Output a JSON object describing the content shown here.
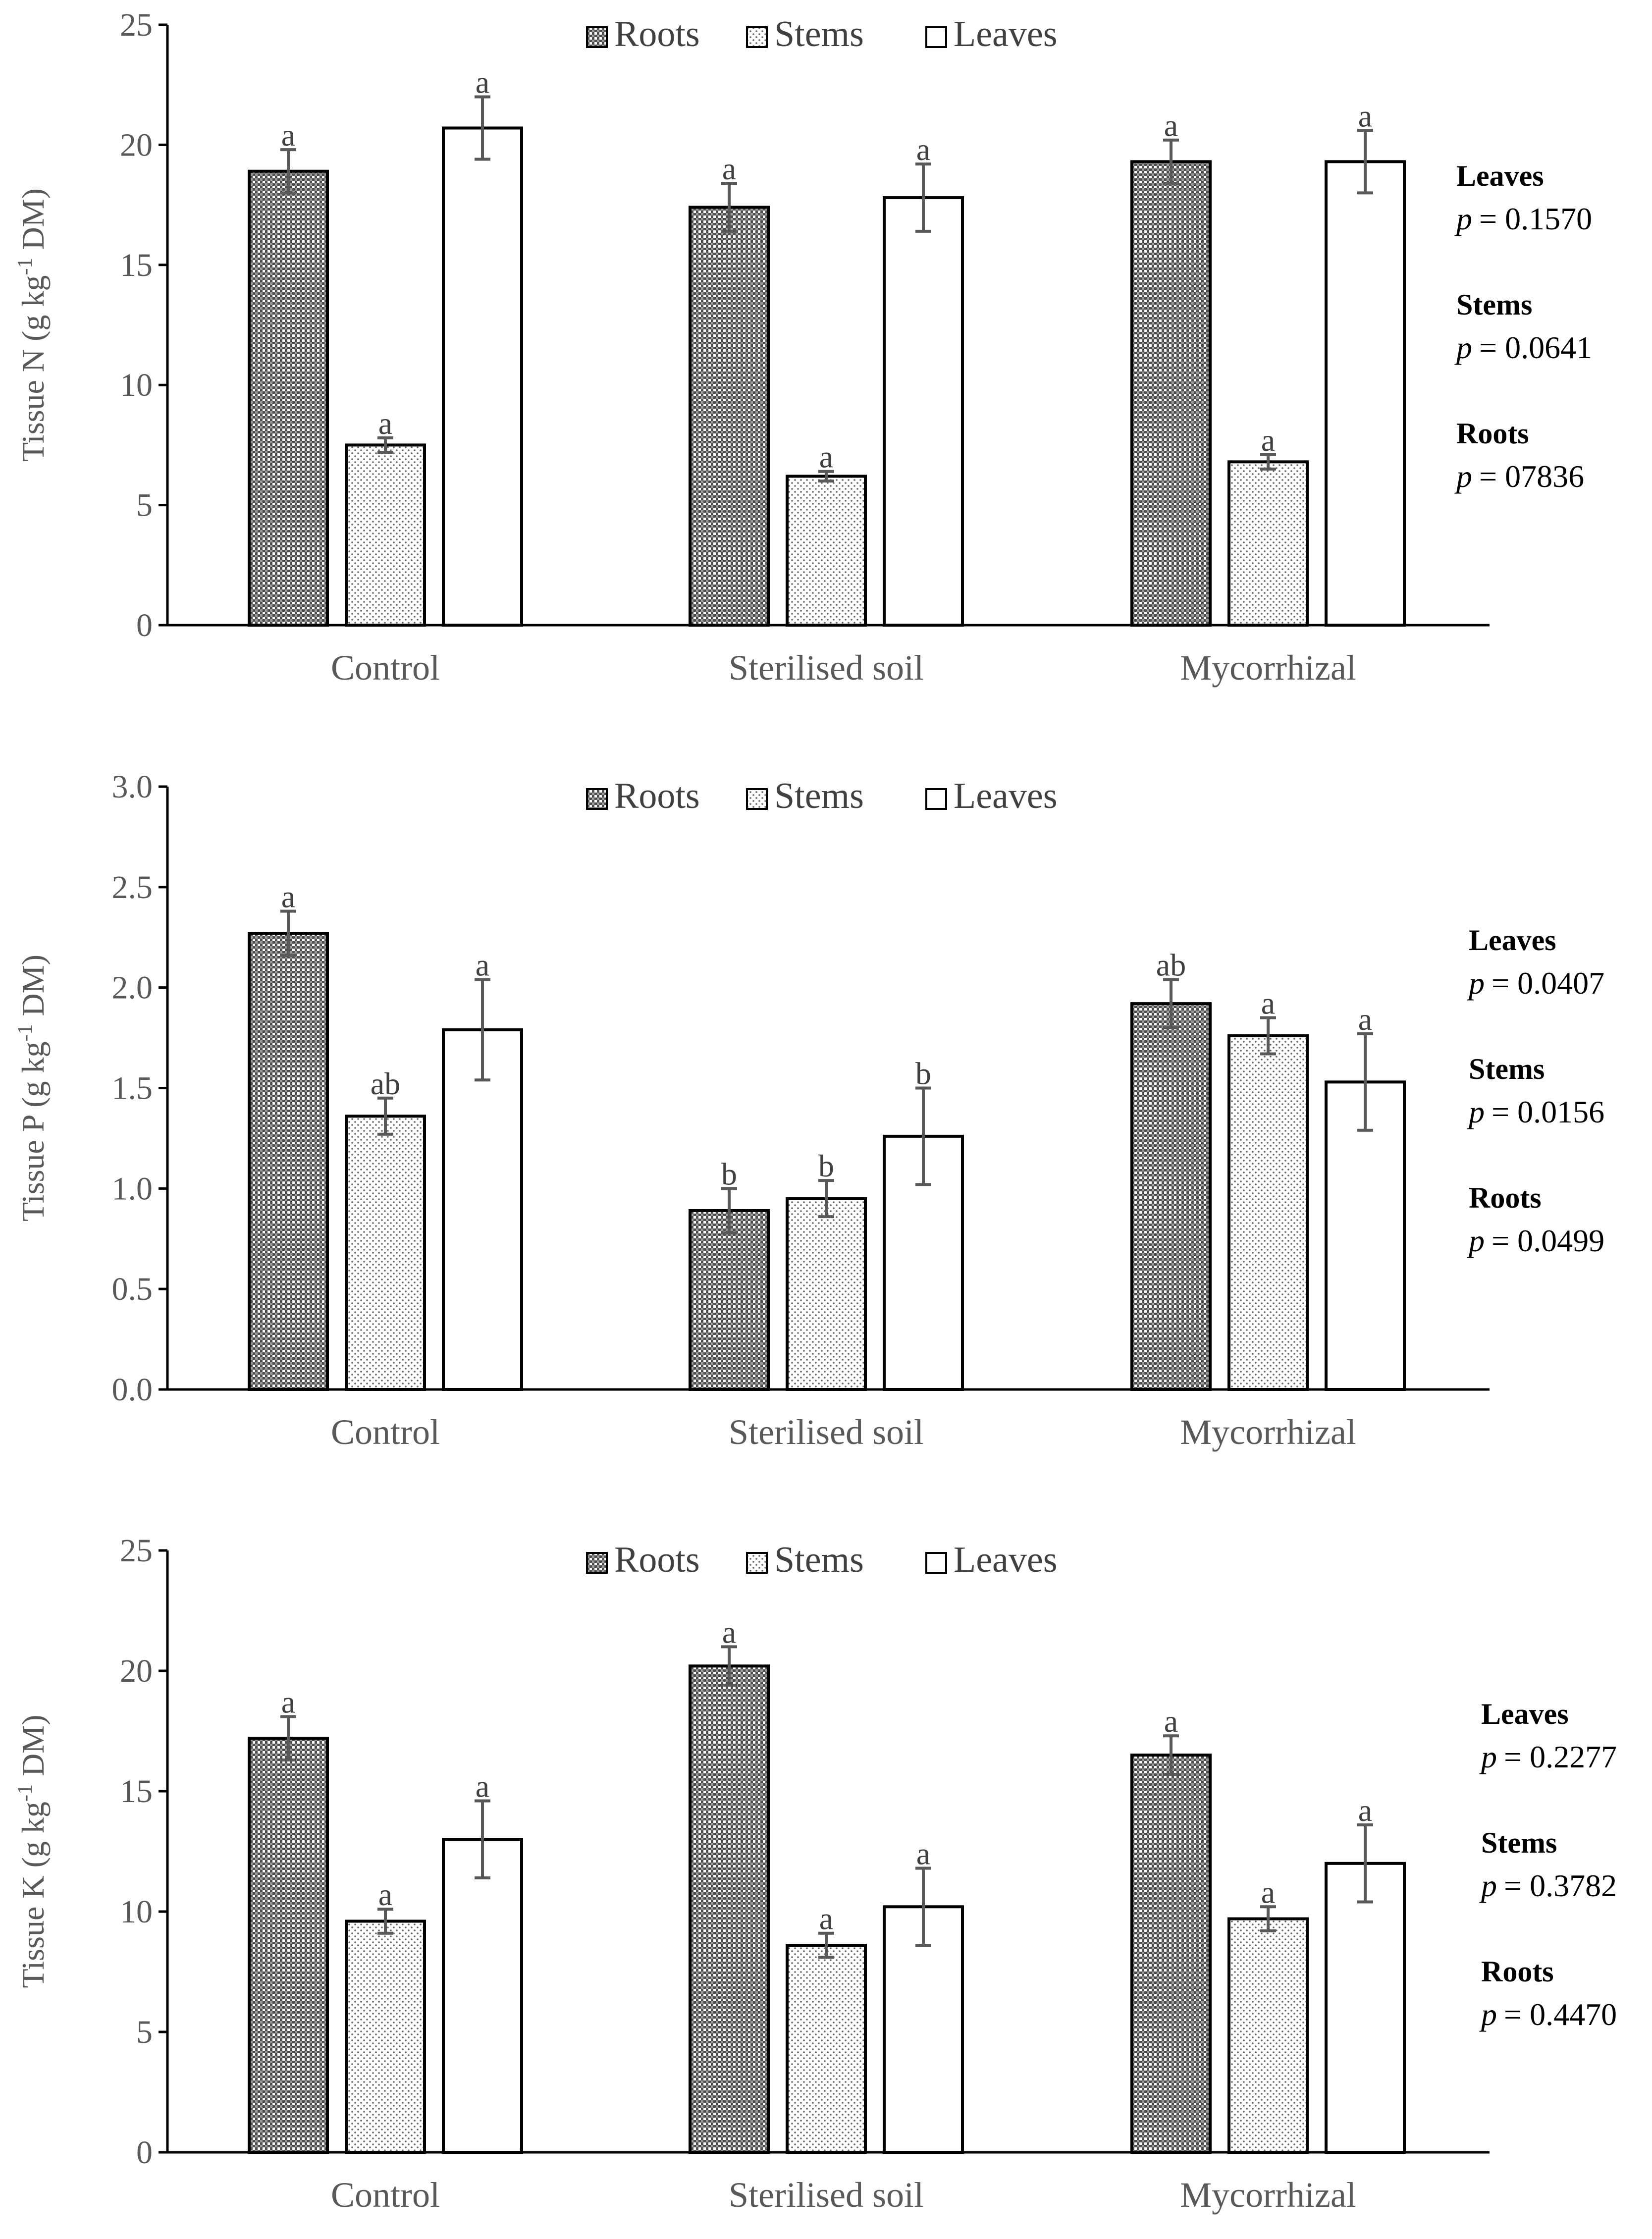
{
  "chart_data": [
    {
      "type": "bar",
      "ylabel_main": "Tissue N (g kg",
      "ylabel_sup": "-1",
      "ylabel_tail": " DM)",
      "ylim": [
        0,
        25
      ],
      "yticks": [
        "0",
        "5",
        "10",
        "15",
        "20",
        "25"
      ],
      "categories": [
        "Control",
        "Sterilised soil",
        "Mycorrhizal"
      ],
      "legend": [
        "Roots",
        "Stems",
        "Leaves"
      ],
      "series": [
        {
          "name": "Roots",
          "values": [
            18.9,
            17.4,
            19.3
          ],
          "errors": [
            0.9,
            1.0,
            0.9
          ],
          "letters": [
            "a",
            "a",
            "a"
          ]
        },
        {
          "name": "Stems",
          "values": [
            7.5,
            6.2,
            6.8
          ],
          "errors": [
            0.3,
            0.2,
            0.3
          ],
          "letters": [
            "a",
            "a",
            "a"
          ]
        },
        {
          "name": "Leaves",
          "values": [
            20.7,
            17.8,
            19.3
          ],
          "errors": [
            1.3,
            1.4,
            1.3
          ],
          "letters": [
            "a",
            "a",
            "a"
          ]
        }
      ],
      "pvalues": [
        {
          "label": "Leaves",
          "value": "= 0.1570"
        },
        {
          "label": "Stems",
          "value": "= 0.0641"
        },
        {
          "label": "Roots",
          "value": "= 07836"
        }
      ]
    },
    {
      "type": "bar",
      "ylabel_main": "Tissue P (g kg",
      "ylabel_sup": "-1",
      "ylabel_tail": " DM)",
      "ylim": [
        0,
        3.0
      ],
      "yticks": [
        "0.0",
        "0.5",
        "1.0",
        "1.5",
        "2.0",
        "2.5",
        "3.0"
      ],
      "categories": [
        "Control",
        "Sterilised soil",
        "Mycorrhizal"
      ],
      "legend": [
        "Roots",
        "Stems",
        "Leaves"
      ],
      "series": [
        {
          "name": "Roots",
          "values": [
            2.27,
            0.89,
            1.92
          ],
          "errors": [
            0.11,
            0.11,
            0.12
          ],
          "letters": [
            "a",
            "b",
            "ab"
          ]
        },
        {
          "name": "Stems",
          "values": [
            1.36,
            0.95,
            1.76
          ],
          "errors": [
            0.09,
            0.09,
            0.09
          ],
          "letters": [
            "ab",
            "b",
            "a"
          ]
        },
        {
          "name": "Leaves",
          "values": [
            1.79,
            1.26,
            1.53
          ],
          "errors": [
            0.25,
            0.24,
            0.24
          ],
          "letters": [
            "a",
            "b",
            "a"
          ]
        }
      ],
      "pvalues": [
        {
          "label": "Leaves",
          "value": "= 0.0407"
        },
        {
          "label": "Stems",
          "value": "= 0.0156"
        },
        {
          "label": "Roots",
          "value": "= 0.0499"
        }
      ]
    },
    {
      "type": "bar",
      "ylabel_main": "Tissue K (g kg",
      "ylabel_sup": "-1",
      "ylabel_tail": " DM)",
      "ylim": [
        0,
        25
      ],
      "yticks": [
        "0",
        "5",
        "10",
        "15",
        "20",
        "25"
      ],
      "categories": [
        "Control",
        "Sterilised soil",
        "Mycorrhizal"
      ],
      "legend": [
        "Roots",
        "Stems",
        "Leaves"
      ],
      "series": [
        {
          "name": "Roots",
          "values": [
            17.2,
            20.2,
            16.5
          ],
          "errors": [
            0.9,
            0.8,
            0.8
          ],
          "letters": [
            "a",
            "a",
            "a"
          ]
        },
        {
          "name": "Stems",
          "values": [
            9.6,
            8.6,
            9.7
          ],
          "errors": [
            0.5,
            0.5,
            0.5
          ],
          "letters": [
            "a",
            "a",
            "a"
          ]
        },
        {
          "name": "Leaves",
          "values": [
            13.0,
            10.2,
            12.0
          ],
          "errors": [
            1.6,
            1.6,
            1.6
          ],
          "letters": [
            "a",
            "a",
            "a"
          ]
        }
      ],
      "pvalues": [
        {
          "label": "Leaves",
          "value": "= 0.2277"
        },
        {
          "label": "Stems",
          "value": "= 0.3782"
        },
        {
          "label": "Roots",
          "value": "= 0.4470"
        }
      ]
    }
  ],
  "p_symbol": "p",
  "colors": {
    "axis": "#000000",
    "error_bar": "#595959",
    "bar_edge": "#000000",
    "roots_pattern": "#4d4d4d",
    "stems_pattern": "#666666"
  }
}
